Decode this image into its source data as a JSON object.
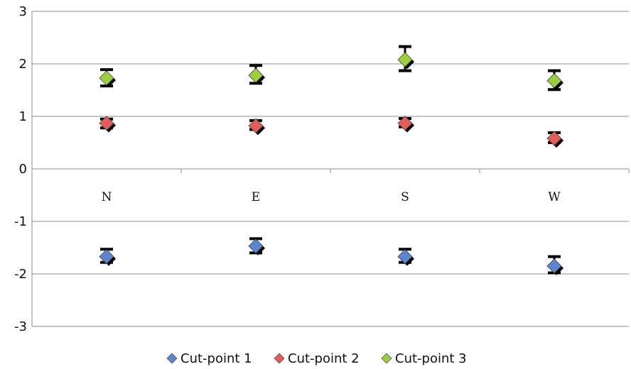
{
  "chart_data": {
    "type": "scatter",
    "categories": [
      "N",
      "E",
      "S",
      "W"
    ],
    "ylim": [
      -3,
      3
    ],
    "yticks": [
      3,
      2,
      1,
      0,
      -1,
      -2,
      -3
    ],
    "grid": true,
    "error_bars": true,
    "legend_position": "bottom",
    "series": [
      {
        "name": "Cut-point 1",
        "color": "#5b86cf",
        "values": [
          -1.67,
          -1.47,
          -1.67,
          -1.85
        ],
        "error_low": [
          -1.78,
          -1.6,
          -1.78,
          -1.98
        ],
        "error_high": [
          -1.53,
          -1.33,
          -1.53,
          -1.67
        ]
      },
      {
        "name": "Cut-point 2",
        "color": "#e25d57",
        "values": [
          0.87,
          0.82,
          0.87,
          0.58
        ],
        "error_low": [
          0.78,
          0.75,
          0.8,
          0.5
        ],
        "error_high": [
          0.95,
          0.92,
          0.96,
          0.69
        ]
      },
      {
        "name": "Cut-point 3",
        "color": "#9bcf3c",
        "values": [
          1.73,
          1.78,
          2.08,
          1.68
        ],
        "error_low": [
          1.58,
          1.63,
          1.87,
          1.51
        ],
        "error_high": [
          1.89,
          1.97,
          2.33,
          1.87
        ]
      }
    ]
  }
}
